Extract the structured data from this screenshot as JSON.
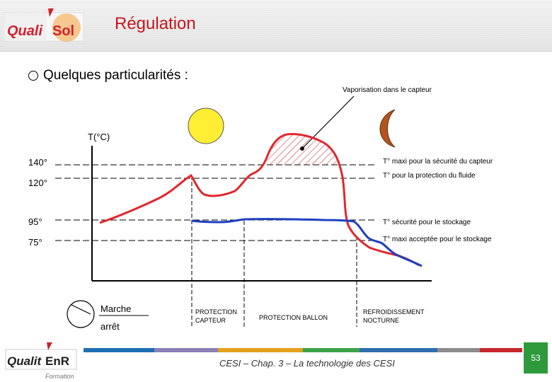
{
  "header": {
    "logo_text": "QualiSol",
    "title": "Régulation"
  },
  "bullet": {
    "text": "Quelques particularités :"
  },
  "diagram": {
    "axis_label": "T(°C)",
    "levels": [
      {
        "id": "t140",
        "value": "140°",
        "label": "T° maxi pour la sécurité du capteur"
      },
      {
        "id": "t120",
        "value": "120°",
        "label": "T° pour la  protection du fluide"
      },
      {
        "id": "t95",
        "value": "95°",
        "label": "T° sécurité pour le stockage"
      },
      {
        "id": "t75",
        "value": "75°",
        "label": "T° maxi acceptée pour le stockage"
      }
    ],
    "annotation": "Vaporisation dans le capteur",
    "switch_on": "Marche",
    "switch_off": "arrêt",
    "phases": {
      "p1_line1": "PROTECTION",
      "p1_line2": "CAPTEUR",
      "p2": "PROTECTION BALLON",
      "p3_line1": "REFROIDISSEMENT",
      "p3_line2": "NOCTURNE"
    },
    "colors": {
      "red_curve": "#e0282e",
      "blue_curve": "#1f3fbf",
      "sun": "#ffee33",
      "moon": "#b5551e"
    }
  },
  "footer": {
    "logo_text": "QualitEnR",
    "logo_sub": "Formation",
    "caption": "CESI – Chap. 3 – La technologie des CESI",
    "page_number": "53",
    "bar_colors": [
      "#1f6fb5",
      "#8b7fb8",
      "#e4a11b",
      "#3aa34a",
      "#2f6db0",
      "#8c8c8c",
      "#c7262c"
    ]
  }
}
